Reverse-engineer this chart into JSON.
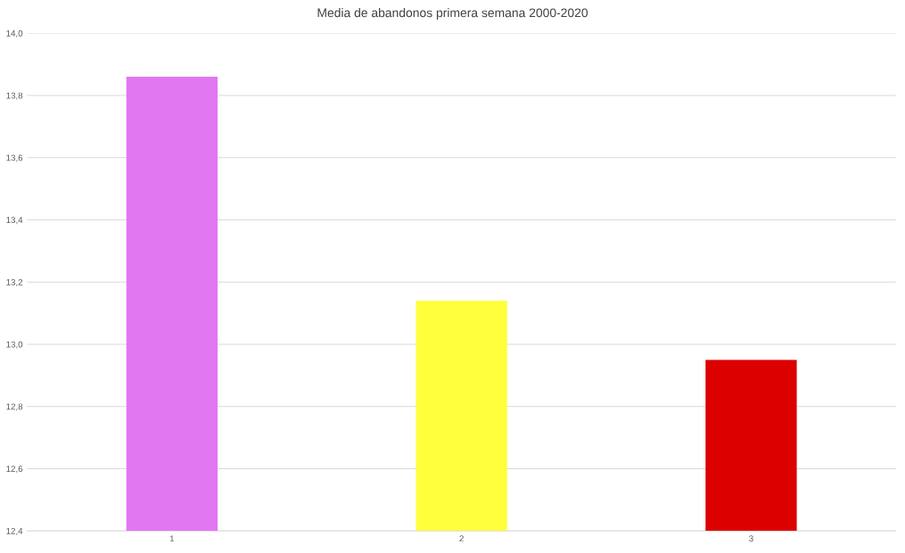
{
  "chart_data": {
    "type": "bar",
    "title": "Media de abandonos primera semana 2000-2020",
    "categories": [
      "1",
      "2",
      "3"
    ],
    "values": [
      13.86,
      13.14,
      12.95
    ],
    "colors": [
      "#e277f2",
      "#ffff3c",
      "#dc0000"
    ],
    "ylim": [
      12.4,
      14.0
    ],
    "yticks": [
      {
        "value": 12.4,
        "label": "12,4"
      },
      {
        "value": 12.6,
        "label": "12,6"
      },
      {
        "value": 12.8,
        "label": "12,8"
      },
      {
        "value": 13.0,
        "label": "13,0"
      },
      {
        "value": 13.2,
        "label": "13,2"
      },
      {
        "value": 13.4,
        "label": "13,4"
      },
      {
        "value": 13.6,
        "label": "13,6"
      },
      {
        "value": 13.8,
        "label": "13,8"
      },
      {
        "value": 14.0,
        "label": "14,0"
      }
    ],
    "grid": "y"
  }
}
